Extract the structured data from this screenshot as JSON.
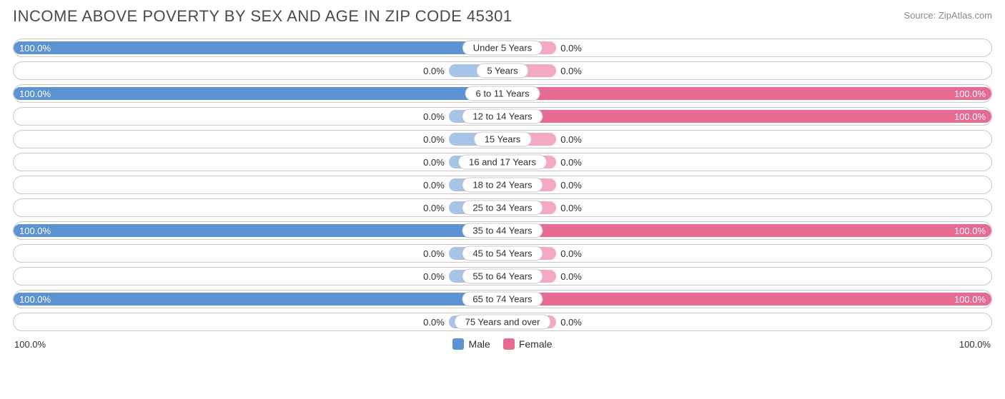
{
  "title": "INCOME ABOVE POVERTY BY SEX AND AGE IN ZIP CODE 45301",
  "source": "Source: ZipAtlas.com",
  "colors": {
    "male_full": "#5b93d3",
    "male_stub": "#a7c4e6",
    "female_full": "#e76a8f",
    "female_stub": "#f3a9c0",
    "border": "#c9c9c9",
    "bg": "#ffffff",
    "text": "#303030"
  },
  "chart": {
    "type": "diverging-bar",
    "stub_pct": 11,
    "full_pct": 100,
    "categories": [
      {
        "label": "Under 5 Years",
        "male": 100.0,
        "female": 0.0
      },
      {
        "label": "5 Years",
        "male": 0.0,
        "female": 0.0
      },
      {
        "label": "6 to 11 Years",
        "male": 100.0,
        "female": 100.0
      },
      {
        "label": "12 to 14 Years",
        "male": 0.0,
        "female": 100.0
      },
      {
        "label": "15 Years",
        "male": 0.0,
        "female": 0.0
      },
      {
        "label": "16 and 17 Years",
        "male": 0.0,
        "female": 0.0
      },
      {
        "label": "18 to 24 Years",
        "male": 0.0,
        "female": 0.0
      },
      {
        "label": "25 to 34 Years",
        "male": 0.0,
        "female": 0.0
      },
      {
        "label": "35 to 44 Years",
        "male": 100.0,
        "female": 100.0
      },
      {
        "label": "45 to 54 Years",
        "male": 0.0,
        "female": 0.0
      },
      {
        "label": "55 to 64 Years",
        "male": 0.0,
        "female": 0.0
      },
      {
        "label": "65 to 74 Years",
        "male": 100.0,
        "female": 100.0
      },
      {
        "label": "75 Years and over",
        "male": 0.0,
        "female": 0.0
      }
    ]
  },
  "axis": {
    "left": "100.0%",
    "right": "100.0%"
  },
  "legend": {
    "male": "Male",
    "female": "Female"
  }
}
